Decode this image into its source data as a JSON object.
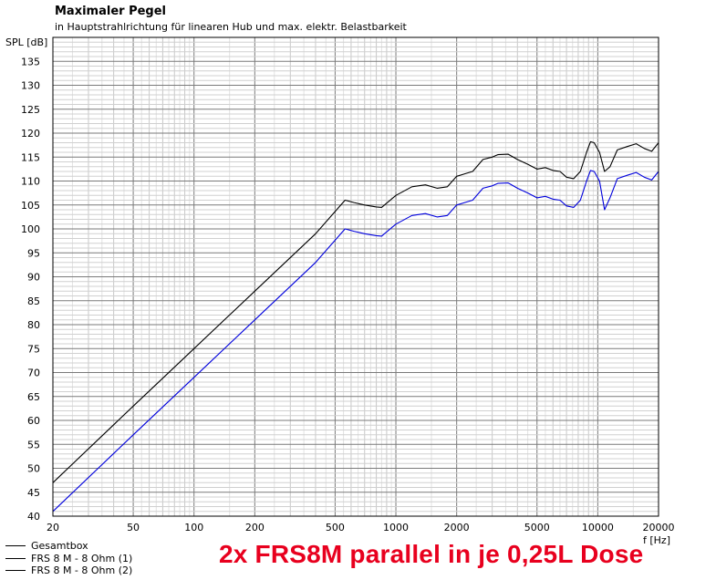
{
  "chart_data": {
    "type": "line",
    "title": "Maximaler Pegel",
    "subtitle": "in Hauptstrahlrichtung für linearen Hub und max. elektr. Belastbarkeit",
    "ylabel": "SPL [dB]",
    "xlabel": "f [Hz]",
    "xscale": "log",
    "xlim": [
      20,
      20000
    ],
    "ylim": [
      40,
      140
    ],
    "grid": true,
    "x_tick_labels": [
      "20",
      "50",
      "100",
      "200",
      "500",
      "1000",
      "2000",
      "5000",
      "10000",
      "20000"
    ],
    "y_tick_labels": [
      "40",
      "45",
      "50",
      "55",
      "60",
      "65",
      "70",
      "75",
      "80",
      "85",
      "90",
      "95",
      "100",
      "105",
      "110",
      "115",
      "120",
      "125",
      "130",
      "135"
    ],
    "legend_position": "bottom-left",
    "series": [
      {
        "name": "Gesamtbox",
        "color": "#000000",
        "x": [
          20,
          50,
          100,
          200,
          400,
          560,
          620,
          700,
          800,
          850,
          1000,
          1200,
          1400,
          1600,
          1800,
          2000,
          2400,
          2700,
          3000,
          3200,
          3600,
          4000,
          4500,
          5000,
          5500,
          6000,
          6500,
          7000,
          7600,
          8200,
          8800,
          9200,
          9600,
          10200,
          10800,
          11500,
          12500,
          14000,
          15500,
          17000,
          18500,
          20000
        ],
        "values": [
          47,
          63,
          75,
          87,
          99,
          106,
          105.5,
          105,
          104.6,
          104.5,
          107,
          108.8,
          109.2,
          108.5,
          108.8,
          111,
          112,
          114.5,
          115,
          115.5,
          115.6,
          114.5,
          113.5,
          112.5,
          112.8,
          112.2,
          112,
          110.8,
          110.5,
          112,
          116,
          118.2,
          118,
          116,
          112,
          113,
          116.5,
          117.2,
          117.8,
          116.8,
          116.2,
          118
        ]
      },
      {
        "name": "FRS 8 M - 8 Ohm (1)",
        "color": "#0000dd",
        "x": [
          20,
          50,
          100,
          200,
          400,
          560,
          620,
          700,
          800,
          850,
          1000,
          1200,
          1400,
          1600,
          1800,
          2000,
          2400,
          2700,
          3000,
          3200,
          3600,
          4000,
          4500,
          5000,
          5500,
          6000,
          6500,
          7000,
          7600,
          8200,
          8800,
          9200,
          9600,
          10200,
          10800,
          11500,
          12500,
          14000,
          15500,
          17000,
          18500,
          20000
        ],
        "values": [
          41,
          57,
          69,
          81,
          93,
          100,
          99.5,
          99,
          98.6,
          98.5,
          101,
          102.8,
          103.2,
          102.5,
          102.8,
          105,
          106,
          108.5,
          109,
          109.5,
          109.6,
          108.5,
          107.5,
          106.5,
          106.8,
          106.2,
          106,
          104.8,
          104.5,
          106,
          110,
          112.2,
          112,
          110,
          104,
          106.5,
          110.5,
          111.2,
          111.8,
          110.8,
          110.2,
          112
        ]
      },
      {
        "name": "FRS 8 M - 8 Ohm (2)",
        "color": "#000000",
        "x": [],
        "values": []
      }
    ]
  },
  "annotation": "2x FRS8M parallel in je 0,25L Dose"
}
